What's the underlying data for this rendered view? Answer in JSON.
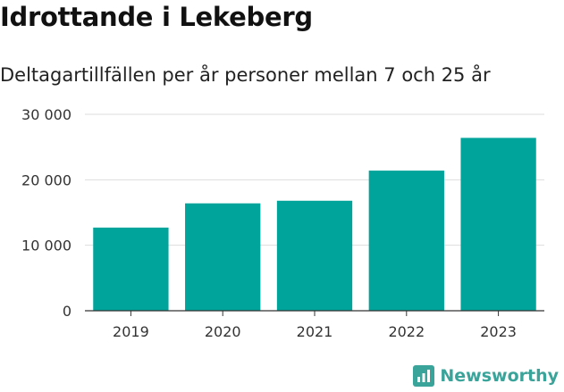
{
  "title": "Idrottande i Lekeberg",
  "subtitle": "Deltagartillfällen per år personer mellan 7 och 25 år",
  "brand": {
    "name": "Newsworthy",
    "color": "#3aa39a"
  },
  "chart_data": {
    "type": "bar",
    "title": "Idrottande i Lekeberg",
    "subtitle": "Deltagartillfällen per år personer mellan 7 och 25 år",
    "xlabel": "",
    "ylabel": "",
    "categories": [
      "2019",
      "2020",
      "2021",
      "2022",
      "2023"
    ],
    "values": [
      12700,
      16400,
      16800,
      21400,
      26400
    ],
    "ylim": [
      0,
      30000
    ],
    "yticks": [
      0,
      10000,
      20000,
      30000
    ],
    "ytick_labels": [
      "0",
      "10 000",
      "20 000",
      "30 000"
    ],
    "grid": true,
    "legend": "none",
    "bar_color": "#00a49a"
  }
}
